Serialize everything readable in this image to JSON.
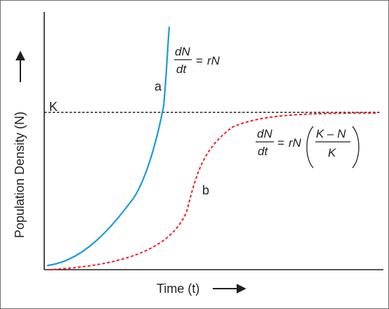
{
  "colors": {
    "curve_a": "#1d9bd8",
    "curve_b": "#e8202a",
    "axis": "#231f20",
    "border": "#6f6f6f"
  },
  "labels": {
    "carrying_capacity": "K",
    "curve_a": "a",
    "curve_b": "b",
    "x_axis": "Time (t)",
    "y_axis": "Population Density (N)"
  },
  "equations": {
    "exponential": {
      "numerator": "dN",
      "denominator": "dt",
      "equals": "=",
      "rhs": "rN"
    },
    "logistic": {
      "numerator": "dN",
      "denominator": "dt",
      "equals": "=",
      "rhs": "rN",
      "frac_numerator": "K – N",
      "frac_denominator": "K"
    }
  },
  "icons": {
    "x_arrow": "arrow-right-icon",
    "y_arrow": "arrow-up-icon"
  }
}
